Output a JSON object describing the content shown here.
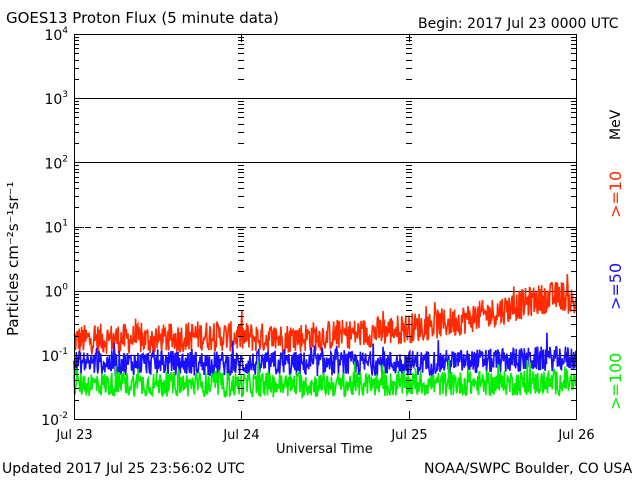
{
  "header": {
    "title": "GOES13 Proton Flux (5 minute data)",
    "begin": "Begin: 2017 Jul 23 0000 UTC"
  },
  "footer": {
    "updated": "Updated 2017 Jul 25 23:56:02 UTC",
    "credit": "NOAA/SWPC Boulder, CO USA"
  },
  "colors": {
    "ge10": "#ff2a00",
    "ge50": "#1a10ff",
    "ge100": "#00ee00",
    "axis": "#000000"
  },
  "chart_data": {
    "type": "line",
    "title": "GOES13 Proton Flux (5 minute data)",
    "xlabel": "Universal Time",
    "ylabel": "Particles cm⁻²s⁻¹sr⁻¹",
    "yscale": "log",
    "ylim": [
      0.01,
      10000
    ],
    "ytick_values": [
      0.01,
      0.1,
      1,
      10,
      100,
      1000,
      10000
    ],
    "ytick_labels": [
      {
        "base": "10",
        "exp": "-2"
      },
      {
        "base": "10",
        "exp": "-1"
      },
      {
        "base": "10",
        "exp": "0"
      },
      {
        "base": "10",
        "exp": "1"
      },
      {
        "base": "10",
        "exp": "2"
      },
      {
        "base": "10",
        "exp": "3"
      },
      {
        "base": "10",
        "exp": "4"
      }
    ],
    "x_categories": [
      "Jul 23",
      "Jul 24",
      "Jul 25",
      "Jul 26"
    ],
    "x_days": [
      "2017-07-23",
      "2017-07-24",
      "2017-07-25",
      "2017-07-26"
    ],
    "reference_lines": [
      {
        "value": 0.1,
        "style": "solid"
      },
      {
        "value": 1,
        "style": "solid"
      },
      {
        "value": 10,
        "style": "dashed"
      },
      {
        "value": 100,
        "style": "solid"
      },
      {
        "value": 1000,
        "style": "solid"
      }
    ],
    "unit_label": "MeV",
    "series": [
      {
        "name": ">=10",
        "color": "#ff2a00",
        "points": [
          [
            "2017-07-23 00:00",
            0.17
          ],
          [
            "2017-07-23 06:00",
            0.18
          ],
          [
            "2017-07-23 12:00",
            0.17
          ],
          [
            "2017-07-23 18:00",
            0.2
          ],
          [
            "2017-07-24 00:00",
            0.19
          ],
          [
            "2017-07-24 06:00",
            0.18
          ],
          [
            "2017-07-24 12:00",
            0.2
          ],
          [
            "2017-07-24 18:00",
            0.22
          ],
          [
            "2017-07-25 00:00",
            0.26
          ],
          [
            "2017-07-25 06:00",
            0.32
          ],
          [
            "2017-07-25 12:00",
            0.45
          ],
          [
            "2017-07-25 18:00",
            0.7
          ],
          [
            "2017-07-25 22:00",
            0.85
          ],
          [
            "2017-07-26 00:00",
            0.6
          ]
        ]
      },
      {
        "name": ">=50",
        "color": "#1a10ff",
        "points": [
          [
            "2017-07-23 00:00",
            0.075
          ],
          [
            "2017-07-23 12:00",
            0.075
          ],
          [
            "2017-07-24 00:00",
            0.072
          ],
          [
            "2017-07-24 12:00",
            0.072
          ],
          [
            "2017-07-25 00:00",
            0.075
          ],
          [
            "2017-07-25 12:00",
            0.08
          ],
          [
            "2017-07-26 00:00",
            0.09
          ]
        ]
      },
      {
        "name": ">=100",
        "color": "#00ee00",
        "points": [
          [
            "2017-07-23 00:00",
            0.035
          ],
          [
            "2017-07-23 12:00",
            0.035
          ],
          [
            "2017-07-24 00:00",
            0.034
          ],
          [
            "2017-07-24 12:00",
            0.034
          ],
          [
            "2017-07-25 00:00",
            0.035
          ],
          [
            "2017-07-25 12:00",
            0.036
          ],
          [
            "2017-07-26 00:00",
            0.037
          ]
        ]
      }
    ]
  }
}
